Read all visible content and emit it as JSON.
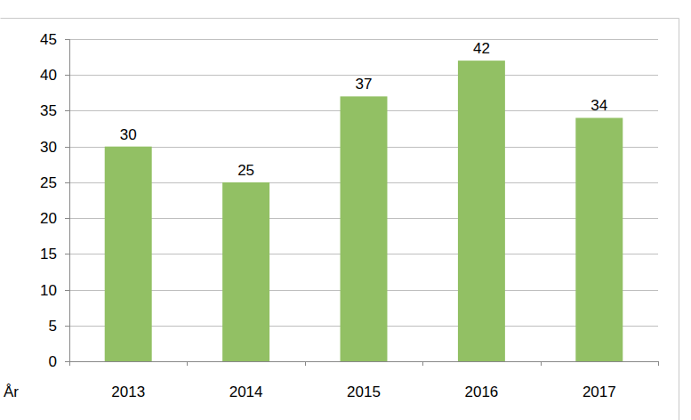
{
  "chart_data": {
    "type": "bar",
    "x_label": "År",
    "categories": [
      "2013",
      "2014",
      "2015",
      "2016",
      "2017"
    ],
    "values": [
      30,
      25,
      37,
      42,
      34
    ],
    "color": "#92c064",
    "ylim": [
      0,
      45
    ],
    "yticks": [
      0,
      5,
      10,
      15,
      20,
      25,
      30,
      35,
      40,
      45
    ],
    "grid": true,
    "data_labels": true
  }
}
